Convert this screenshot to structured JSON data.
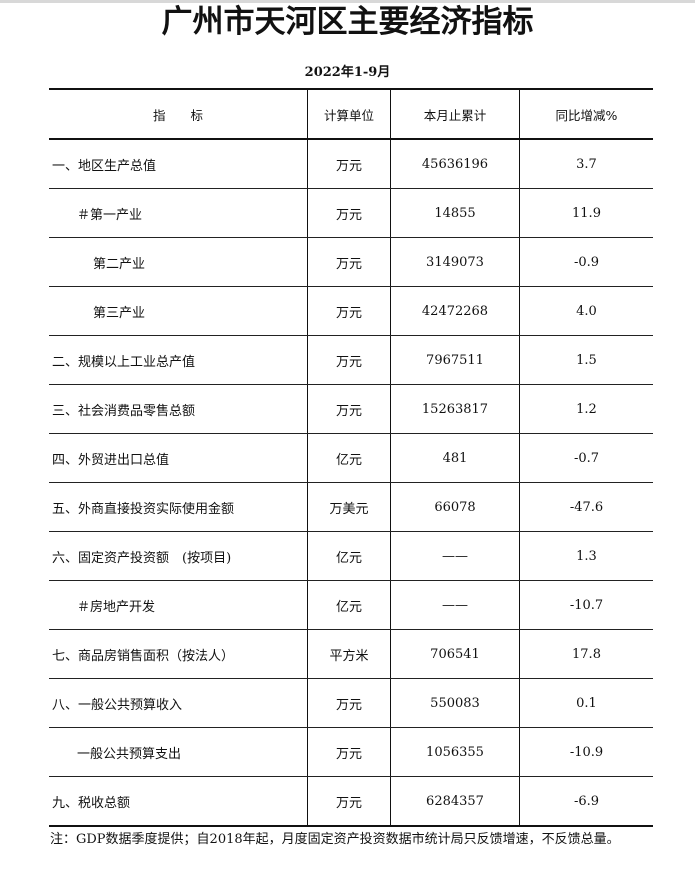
{
  "title": "广州市天河区主要经济指标",
  "subtitle": "2022年1-9月",
  "table": {
    "headers": [
      "指　　标",
      "计算单位",
      "本月止累计",
      "同比增减%"
    ],
    "rows": [
      {
        "indicator": "一、地区生产总值",
        "level": 0,
        "unit": "万元",
        "cumulative": "45636196",
        "yoy": "3.7"
      },
      {
        "indicator": "＃第一产业",
        "level": 1,
        "unit": "万元",
        "cumulative": "14855",
        "yoy": "11.9"
      },
      {
        "indicator": "第二产业",
        "level": 2,
        "unit": "万元",
        "cumulative": "3149073",
        "yoy": "-0.9"
      },
      {
        "indicator": "第三产业",
        "level": 2,
        "unit": "万元",
        "cumulative": "42472268",
        "yoy": "4.0"
      },
      {
        "indicator": "二、规模以上工业总产值",
        "level": 0,
        "unit": "万元",
        "cumulative": "7967511",
        "yoy": "1.5"
      },
      {
        "indicator": "三、社会消费品零售总额",
        "level": 0,
        "unit": "万元",
        "cumulative": "15263817",
        "yoy": "1.2"
      },
      {
        "indicator": "四、外贸进出口总值",
        "level": 0,
        "unit": "亿元",
        "cumulative": "481",
        "yoy": "-0.7"
      },
      {
        "indicator": "五、外商直接投资实际使用金额",
        "level": 0,
        "unit": "万美元",
        "cumulative": "66078",
        "yoy": "-47.6"
      },
      {
        "indicator": "六、固定资产投资额　(按项目)",
        "level": 0,
        "unit": "亿元",
        "cumulative": "——",
        "yoy": "1.3"
      },
      {
        "indicator": "＃房地产开发",
        "level": 1,
        "unit": "亿元",
        "cumulative": "——",
        "yoy": "-10.7"
      },
      {
        "indicator": "七、商品房销售面积（按法人）",
        "level": 0,
        "unit": "平方米",
        "cumulative": "706541",
        "yoy": "17.8"
      },
      {
        "indicator": "八、一般公共预算收入",
        "level": 0,
        "unit": "万元",
        "cumulative": "550083",
        "yoy": "0.1"
      },
      {
        "indicator": "一般公共预算支出",
        "level": 1,
        "unit": "万元",
        "cumulative": "1056355",
        "yoy": "-10.9"
      },
      {
        "indicator": "九、税收总额",
        "level": 0,
        "unit": "万元",
        "cumulative": "6284357",
        "yoy": "-6.9"
      }
    ]
  },
  "note": "注：GDP数据季度提供；自2018年起，月度固定资产投资数据市统计局只反馈增速，不反馈总量。"
}
